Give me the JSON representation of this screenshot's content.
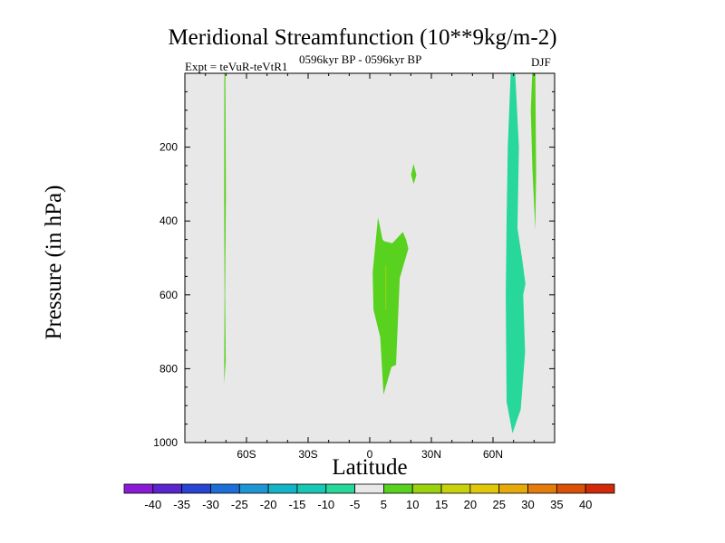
{
  "title": "Meridional Streamfunction (10**9kg/m-2)",
  "subtitle_left": "Expt = teVuR-teVtR1",
  "subtitle_center": "0596kyr BP - 0596kyr BP",
  "subtitle_right": "DJF",
  "chart_data": {
    "type": "contour",
    "title": "Meridional Streamfunction (10**9kg/m-2)",
    "xlabel": "Latitude",
    "ylabel": "Pressure (in hPa)",
    "xlim": [
      -90,
      90
    ],
    "ylim": [
      0,
      1000
    ],
    "y_inverted": true,
    "x_ticks": [
      {
        "value": -60,
        "label": "60S"
      },
      {
        "value": -30,
        "label": "30S"
      },
      {
        "value": 0,
        "label": "0"
      },
      {
        "value": 30,
        "label": "30N"
      },
      {
        "value": 60,
        "label": "60N"
      }
    ],
    "y_ticks": [
      {
        "value": 200,
        "label": "200"
      },
      {
        "value": 400,
        "label": "400"
      },
      {
        "value": 600,
        "label": "600"
      },
      {
        "value": 800,
        "label": "800"
      },
      {
        "value": 1000,
        "label": "1000"
      }
    ],
    "background_level": "-5 to 5",
    "background_color": "#e8e8e8",
    "colorbar": {
      "labels": [
        "-40",
        "-35",
        "-30",
        "-25",
        "-20",
        "-15",
        "-10",
        "-5",
        "5",
        "10",
        "15",
        "20",
        "25",
        "30",
        "35",
        "40"
      ],
      "colors": [
        "#8a1ad6",
        "#5a24cf",
        "#2844d2",
        "#1e6ed8",
        "#1e96d6",
        "#14b4c8",
        "#18c8b4",
        "#28d79a",
        "#e8e8e8",
        "#58d21e",
        "#9ad20e",
        "#c8d20c",
        "#e1c80c",
        "#e6aa0a",
        "#e37c0a",
        "#dc5008",
        "#d22a06"
      ]
    },
    "regions": [
      {
        "name": "southern-high-lat-cell",
        "level": "5 to 10",
        "points": [
          [
            -70.3,
            0
          ],
          [
            -70.8,
            0
          ],
          [
            -70.9,
            330
          ],
          [
            -70.7,
            600
          ],
          [
            -70.9,
            840
          ],
          [
            -70.1,
            780
          ],
          [
            -70.4,
            600
          ],
          [
            -70.0,
            330
          ]
        ]
      },
      {
        "name": "equatorial-cell",
        "level": "5 to 10",
        "points": [
          [
            4.0,
            390
          ],
          [
            1.4,
            540
          ],
          [
            1.8,
            640
          ],
          [
            5.1,
            715
          ],
          [
            6.7,
            870
          ],
          [
            10.6,
            795
          ],
          [
            12.8,
            790
          ],
          [
            14.6,
            555
          ],
          [
            18.8,
            475
          ],
          [
            17.7,
            450
          ],
          [
            16.1,
            430
          ],
          [
            11.0,
            460
          ],
          [
            7.1,
            455
          ],
          [
            6.2,
            450
          ]
        ]
      },
      {
        "name": "upper-trop-blob",
        "level": "5 to 10",
        "points": [
          [
            21.3,
            245
          ],
          [
            20.1,
            275
          ],
          [
            21.4,
            300
          ],
          [
            22.7,
            275
          ]
        ]
      },
      {
        "name": "northern-negative-cell",
        "level": "-10 to -5",
        "points": [
          [
            70.8,
            0
          ],
          [
            68.6,
            0
          ],
          [
            67.2,
            200
          ],
          [
            66.6,
            400
          ],
          [
            66.2,
            600
          ],
          [
            66.6,
            890
          ],
          [
            69.5,
            975
          ],
          [
            73.5,
            910
          ],
          [
            75.6,
            755
          ],
          [
            74.7,
            600
          ],
          [
            75.8,
            570
          ],
          [
            74.1,
            500
          ],
          [
            71.9,
            420
          ],
          [
            72.6,
            200
          ]
        ]
      },
      {
        "name": "northern-high-lat-cell",
        "level": "5 to 10",
        "points": [
          [
            80.6,
            0
          ],
          [
            79.1,
            0
          ],
          [
            78.4,
            100
          ],
          [
            79.2,
            260
          ],
          [
            80.6,
            425
          ],
          [
            81.0,
            270
          ]
        ]
      }
    ]
  }
}
